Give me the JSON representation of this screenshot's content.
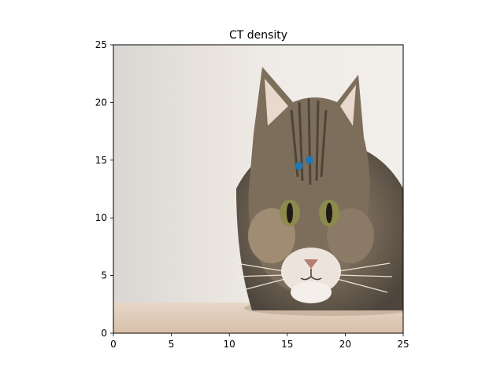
{
  "chart_data": {
    "type": "scatter",
    "title": "CT density",
    "xlabel": "",
    "ylabel": "",
    "xlim": [
      0,
      25
    ],
    "ylim": [
      0,
      25
    ],
    "x_ticks": [
      0,
      5,
      10,
      15,
      20,
      25
    ],
    "y_ticks": [
      0,
      5,
      10,
      15,
      20,
      25
    ],
    "grid": false,
    "legend": "none",
    "background_image": "cat-photo",
    "series": [
      {
        "color": "#1f77b4",
        "points": [
          {
            "x": 16.0,
            "y": 14.5
          },
          {
            "x": 16.9,
            "y": 15.0
          }
        ]
      }
    ]
  }
}
